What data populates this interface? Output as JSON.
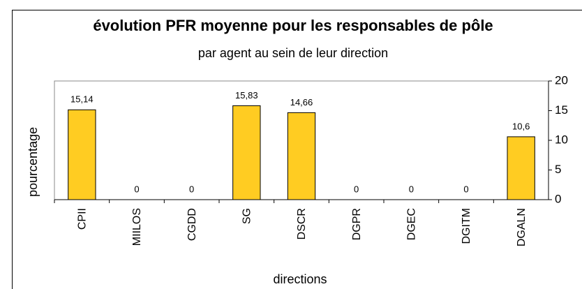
{
  "chart_data": {
    "type": "bar",
    "title": "évolution PFR moyenne pour les responsables de pôle",
    "subtitle": "par agent au sein de leur direction",
    "x_label": "directions",
    "y_label": "pourcentage",
    "categories": [
      "CPII",
      "MIILOS",
      "CGDD",
      "SG",
      "DSCR",
      "DGPR",
      "DGEC",
      "DGITM",
      "DGALN"
    ],
    "values": [
      15.14,
      0,
      0,
      15.83,
      14.66,
      0,
      0,
      0,
      10.6
    ],
    "value_labels": [
      "15,14",
      "0",
      "0",
      "15,83",
      "14,66",
      "0",
      "0",
      "0",
      "10,6"
    ],
    "color": "#ffcc22",
    "ylim": [
      0,
      20
    ],
    "yticks": [
      0,
      5,
      10,
      15,
      20
    ],
    "y_axis_side": "right",
    "grid": false
  }
}
